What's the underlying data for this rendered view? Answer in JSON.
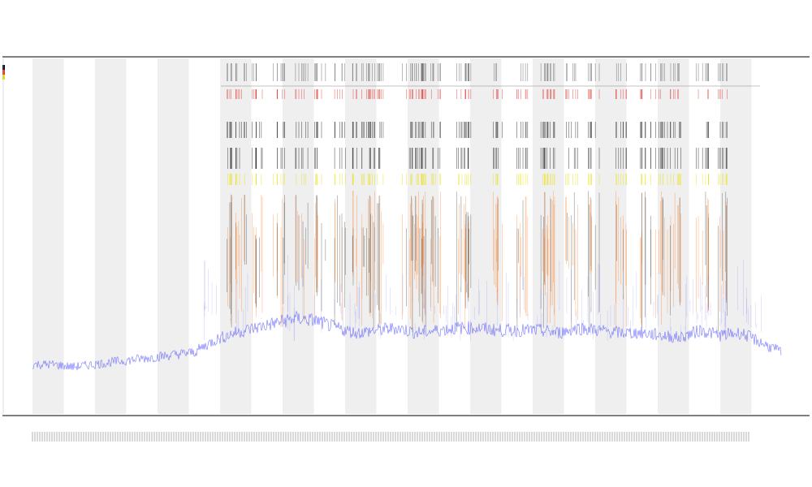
{
  "title": {
    "line1": "",
    "line2": "",
    "line3": ""
  },
  "legend": {
    "items": [
      {
        "name": "",
        "color": "#000000"
      },
      {
        "name": "",
        "color": "#e0302a"
      },
      {
        "name": "",
        "color": "#e8e000"
      }
    ]
  },
  "tracks": {
    "label_1": "",
    "label_2": ""
  },
  "colors": {
    "axis": "#333333",
    "band": "#efefef",
    "signal": "#4a4aff",
    "spike_orange": "#ff6a00",
    "spike_dark": "#111111",
    "event_red": "#e0302a",
    "event_yellow": "#e8e000"
  },
  "chart_data": {
    "type": "line",
    "title": "",
    "xlabel": "",
    "ylabel": "",
    "ylim": [
      0,
      1
    ],
    "grid": false,
    "legend_placement": "left",
    "band_count": 12,
    "series": [
      {
        "name": "",
        "color": "#4a4aff",
        "values": [
          0.07,
          0.07,
          0.06,
          0.07,
          0.08,
          0.09,
          0.1,
          0.11,
          0.12,
          0.17,
          0.2,
          0.22,
          0.24,
          0.26,
          0.25,
          0.22,
          0.2,
          0.21,
          0.22,
          0.2,
          0.21,
          0.22,
          0.22,
          0.21,
          0.21,
          0.21,
          0.2,
          0.22,
          0.21,
          0.2,
          0.2,
          0.19,
          0.18,
          0.21,
          0.19,
          0.2,
          0.16,
          0.12
        ]
      }
    ],
    "event_positions": [
      0.265,
      0.28,
      0.3,
      0.33,
      0.36,
      0.385,
      0.41,
      0.435,
      0.45,
      0.46,
      0.5,
      0.515,
      0.52,
      0.54,
      0.575,
      0.58,
      0.62,
      0.655,
      0.685,
      0.69,
      0.72,
      0.75,
      0.785,
      0.82,
      0.84,
      0.86,
      0.895,
      0.92
    ]
  }
}
